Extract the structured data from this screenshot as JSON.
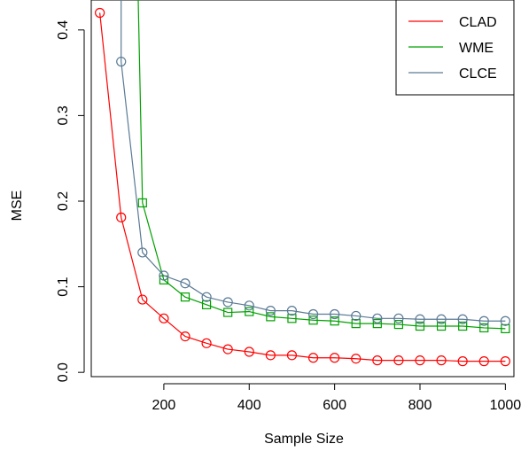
{
  "chart_data": {
    "type": "line",
    "title": "",
    "xlabel": "Sample Size",
    "ylabel": "MSE",
    "xlim": [
      30,
      1020
    ],
    "ylim": [
      -0.005,
      0.435
    ],
    "xticks": [
      200,
      400,
      600,
      800,
      1000
    ],
    "xtick_labels": [
      "200",
      "400",
      "600",
      "800",
      "1000"
    ],
    "yticks": [
      0.0,
      0.1,
      0.2,
      0.3,
      0.4
    ],
    "ytick_labels": [
      "0.0",
      "0.1",
      "0.2",
      "0.3",
      "0.4"
    ],
    "grid": false,
    "legend_position": "top-right",
    "series": [
      {
        "name": "CLAD",
        "color": "#ff0000",
        "marker": "circle",
        "x": [
          50,
          100,
          150,
          200,
          250,
          300,
          350,
          400,
          450,
          500,
          550,
          600,
          650,
          700,
          750,
          800,
          850,
          900,
          950,
          1000
        ],
        "y": [
          0.42,
          0.181,
          0.085,
          0.063,
          0.042,
          0.034,
          0.027,
          0.024,
          0.02,
          0.02,
          0.017,
          0.017,
          0.016,
          0.014,
          0.014,
          0.014,
          0.014,
          0.013,
          0.013,
          0.013
        ]
      },
      {
        "name": "WME",
        "color": "#00a000",
        "marker": "square",
        "x": [
          200,
          250,
          300,
          350,
          400,
          450,
          500,
          550,
          600,
          650,
          700,
          750,
          800,
          850,
          900,
          950,
          1000
        ],
        "y": [
          0.108,
          0.088,
          0.079,
          0.07,
          0.071,
          0.065,
          0.063,
          0.061,
          0.06,
          0.057,
          0.057,
          0.056,
          0.054,
          0.054,
          0.054,
          0.052,
          0.051
        ],
        "extra_points": [
          [
            150,
            0.198
          ]
        ],
        "offscale_from": [
          140,
          0.435
        ]
      },
      {
        "name": "CLCE",
        "color": "#5a7a95",
        "marker": "circle",
        "x": [
          100,
          150,
          200,
          250,
          300,
          350,
          400,
          450,
          500,
          550,
          600,
          650,
          700,
          750,
          800,
          850,
          900,
          950,
          1000
        ],
        "y": [
          0.363,
          0.14,
          0.113,
          0.104,
          0.088,
          0.082,
          0.078,
          0.072,
          0.072,
          0.068,
          0.068,
          0.066,
          0.063,
          0.063,
          0.062,
          0.062,
          0.062,
          0.06,
          0.06
        ],
        "offscale_from": [
          100,
          0.435
        ]
      }
    ]
  }
}
